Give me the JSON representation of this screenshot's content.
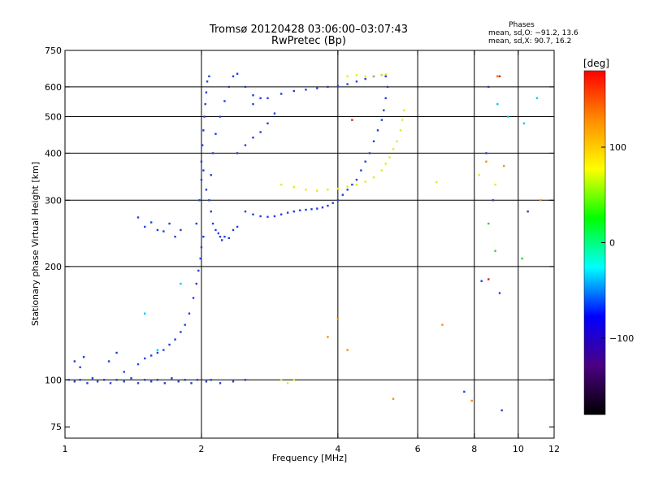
{
  "header": {
    "title_line1": "Tromsø 20120428 03:06:00–03:07:43",
    "title_line2": "RwPretec (Bp)"
  },
  "phases_box": {
    "title": "Phases",
    "line_o": "mean, sd,O: −91.2, 13.6",
    "line_x": "mean, sd,X:  90.7, 16.2"
  },
  "colorbar": {
    "label": "[deg]",
    "ticks": [
      "100",
      "0",
      "−100"
    ],
    "tick_values": [
      100,
      0,
      -100
    ],
    "range": [
      -180,
      180
    ],
    "colors": [
      "#000000",
      "#4b0082",
      "#0000ff",
      "#00ffff",
      "#00ff00",
      "#ffff00",
      "#ff8c00",
      "#ff0000"
    ]
  },
  "chart_data": {
    "type": "scatter",
    "title": "Tromsø 20120428 03:06:00–03:07:43",
    "subtitle": "RwPretec (Bp)",
    "xlabel": "Frequency [MHz]",
    "ylabel": "Stationary phase Virtual Height [km]",
    "xscale": "log",
    "yscale": "log",
    "xlim": [
      1,
      12
    ],
    "ylim": [
      70,
      750
    ],
    "xticks": [
      1,
      2,
      4,
      6,
      8,
      10,
      12
    ],
    "xtick_labels": [
      "1",
      "2",
      "4",
      "6",
      "8",
      "10",
      "12"
    ],
    "xgrid": [
      2,
      4,
      6,
      8,
      10
    ],
    "yticks": [
      75,
      100,
      200,
      300,
      400,
      500,
      600,
      750
    ],
    "ytick_labels": [
      "75",
      "100",
      "200",
      "300",
      "400",
      "500",
      "600",
      "750"
    ],
    "ygrid": [
      100,
      200,
      300,
      400,
      500,
      600
    ],
    "grid": true,
    "series": [
      {
        "color": "#1f3fe0",
        "points": [
          [
            1.02,
            100
          ],
          [
            1.05,
            99
          ],
          [
            1.08,
            100
          ],
          [
            1.12,
            98
          ],
          [
            1.15,
            101
          ],
          [
            1.18,
            99
          ],
          [
            1.22,
            100
          ],
          [
            1.26,
            98
          ],
          [
            1.3,
            100
          ],
          [
            1.35,
            99
          ],
          [
            1.4,
            101
          ],
          [
            1.45,
            98
          ],
          [
            1.5,
            100
          ],
          [
            1.55,
            99
          ],
          [
            1.6,
            100
          ],
          [
            1.66,
            98
          ],
          [
            1.72,
            101
          ],
          [
            1.78,
            99
          ],
          [
            1.84,
            100
          ],
          [
            1.9,
            98
          ],
          [
            1.96,
            100
          ],
          [
            2.05,
            99
          ],
          [
            2.1,
            100
          ],
          [
            2.2,
            98
          ],
          [
            2.35,
            99
          ],
          [
            2.5,
            100
          ],
          [
            1.05,
            112
          ],
          [
            1.08,
            108
          ],
          [
            1.1,
            115
          ],
          [
            1.25,
            112
          ],
          [
            1.3,
            118
          ],
          [
            1.35,
            105
          ],
          [
            1.45,
            110
          ],
          [
            1.5,
            114
          ],
          [
            1.55,
            116
          ],
          [
            1.6,
            118
          ],
          [
            1.65,
            120
          ],
          [
            1.7,
            124
          ],
          [
            1.75,
            128
          ],
          [
            1.8,
            134
          ],
          [
            1.84,
            140
          ],
          [
            1.88,
            150
          ],
          [
            1.92,
            165
          ],
          [
            1.95,
            180
          ],
          [
            1.97,
            195
          ],
          [
            1.99,
            210
          ],
          [
            2.0,
            225
          ],
          [
            2.02,
            240
          ],
          [
            1.45,
            270
          ],
          [
            1.5,
            255
          ],
          [
            1.55,
            262
          ],
          [
            1.6,
            250
          ],
          [
            1.65,
            248
          ],
          [
            1.7,
            260
          ],
          [
            1.75,
            240
          ],
          [
            1.8,
            250
          ],
          [
            1.95,
            260
          ],
          [
            1.98,
            300
          ],
          [
            2.0,
            340
          ],
          [
            2.0,
            380
          ],
          [
            2.01,
            420
          ],
          [
            2.02,
            460
          ],
          [
            2.03,
            500
          ],
          [
            2.04,
            540
          ],
          [
            2.05,
            580
          ],
          [
            2.06,
            620
          ],
          [
            2.08,
            640
          ],
          [
            2.02,
            360
          ],
          [
            2.05,
            320
          ],
          [
            2.08,
            300
          ],
          [
            2.1,
            280
          ],
          [
            2.12,
            260
          ],
          [
            2.15,
            250
          ],
          [
            2.18,
            245
          ],
          [
            2.2,
            240
          ],
          [
            2.22,
            235
          ],
          [
            2.25,
            240
          ],
          [
            2.3,
            238
          ],
          [
            2.35,
            250
          ],
          [
            2.4,
            255
          ],
          [
            2.1,
            350
          ],
          [
            2.12,
            400
          ],
          [
            2.15,
            450
          ],
          [
            2.2,
            500
          ],
          [
            2.25,
            550
          ],
          [
            2.3,
            600
          ],
          [
            2.35,
            640
          ],
          [
            2.4,
            650
          ],
          [
            2.5,
            600
          ],
          [
            2.6,
            570
          ],
          [
            2.7,
            560
          ],
          [
            2.4,
            400
          ],
          [
            2.5,
            420
          ],
          [
            2.6,
            440
          ],
          [
            2.7,
            455
          ],
          [
            2.8,
            480
          ],
          [
            2.9,
            510
          ],
          [
            2.5,
            280
          ],
          [
            2.6,
            275
          ],
          [
            2.7,
            272
          ],
          [
            2.8,
            271
          ],
          [
            2.9,
            272
          ],
          [
            3.0,
            275
          ],
          [
            3.1,
            278
          ],
          [
            3.2,
            280
          ],
          [
            3.3,
            282
          ],
          [
            3.4,
            283
          ],
          [
            3.5,
            284
          ],
          [
            3.6,
            285
          ],
          [
            3.7,
            287
          ],
          [
            3.8,
            290
          ],
          [
            3.9,
            295
          ],
          [
            4.0,
            300
          ],
          [
            4.1,
            310
          ],
          [
            4.2,
            320
          ],
          [
            4.3,
            330
          ],
          [
            4.4,
            340
          ],
          [
            4.5,
            360
          ],
          [
            4.6,
            380
          ],
          [
            4.7,
            400
          ],
          [
            4.8,
            430
          ],
          [
            4.9,
            460
          ],
          [
            5.0,
            490
          ],
          [
            5.05,
            520
          ],
          [
            5.1,
            560
          ],
          [
            5.15,
            600
          ],
          [
            2.6,
            540
          ],
          [
            2.8,
            560
          ],
          [
            3.0,
            575
          ],
          [
            3.2,
            585
          ],
          [
            3.4,
            590
          ],
          [
            3.6,
            595
          ],
          [
            3.8,
            600
          ],
          [
            4.0,
            603
          ],
          [
            4.2,
            610
          ],
          [
            4.4,
            620
          ],
          [
            4.6,
            630
          ],
          [
            4.8,
            640
          ],
          [
            5.0,
            645
          ],
          [
            5.1,
            640
          ],
          [
            7.6,
            93
          ],
          [
            8.5,
            400
          ],
          [
            8.8,
            300
          ],
          [
            8.3,
            183
          ],
          [
            8.6,
            600
          ],
          [
            9.0,
            640
          ],
          [
            9.1,
            170
          ],
          [
            9.2,
            83
          ],
          [
            10.5,
            280
          ]
        ]
      },
      {
        "color": "#e8e81a",
        "points": [
          [
            3.0,
            330
          ],
          [
            3.2,
            325
          ],
          [
            3.4,
            320
          ],
          [
            3.6,
            318
          ],
          [
            3.8,
            320
          ],
          [
            4.0,
            322
          ],
          [
            4.2,
            326
          ],
          [
            4.4,
            330
          ],
          [
            4.6,
            336
          ],
          [
            4.8,
            345
          ],
          [
            5.0,
            360
          ],
          [
            5.1,
            375
          ],
          [
            5.2,
            390
          ],
          [
            5.3,
            410
          ],
          [
            5.4,
            430
          ],
          [
            5.5,
            460
          ],
          [
            5.55,
            490
          ],
          [
            5.6,
            520
          ],
          [
            4.2,
            640
          ],
          [
            4.4,
            645
          ],
          [
            4.6,
            640
          ],
          [
            4.8,
            642
          ],
          [
            5.0,
            645
          ],
          [
            5.1,
            648
          ],
          [
            3.0,
            100
          ],
          [
            3.1,
            98
          ],
          [
            3.2,
            100
          ],
          [
            6.6,
            335
          ],
          [
            8.2,
            350
          ],
          [
            8.9,
            330
          ]
        ]
      },
      {
        "color": "#ff8a00",
        "points": [
          [
            3.8,
            130
          ],
          [
            4.0,
            145
          ],
          [
            4.2,
            120
          ],
          [
            5.3,
            89
          ],
          [
            6.8,
            140
          ],
          [
            7.9,
            88
          ],
          [
            8.5,
            380
          ],
          [
            9.0,
            640
          ],
          [
            9.3,
            370
          ],
          [
            11.2,
            300
          ]
        ]
      },
      {
        "color": "#00c8ff",
        "points": [
          [
            1.5,
            150
          ],
          [
            1.6,
            120
          ],
          [
            1.8,
            180
          ],
          [
            9.0,
            540
          ],
          [
            9.5,
            500
          ],
          [
            10.3,
            480
          ],
          [
            11.0,
            560
          ]
        ]
      },
      {
        "color": "#30d030",
        "points": [
          [
            8.6,
            260
          ],
          [
            8.9,
            220
          ],
          [
            10.2,
            210
          ]
        ]
      },
      {
        "color": "#d02020",
        "points": [
          [
            4.3,
            490
          ],
          [
            8.6,
            185
          ],
          [
            9.1,
            640
          ]
        ]
      }
    ]
  }
}
